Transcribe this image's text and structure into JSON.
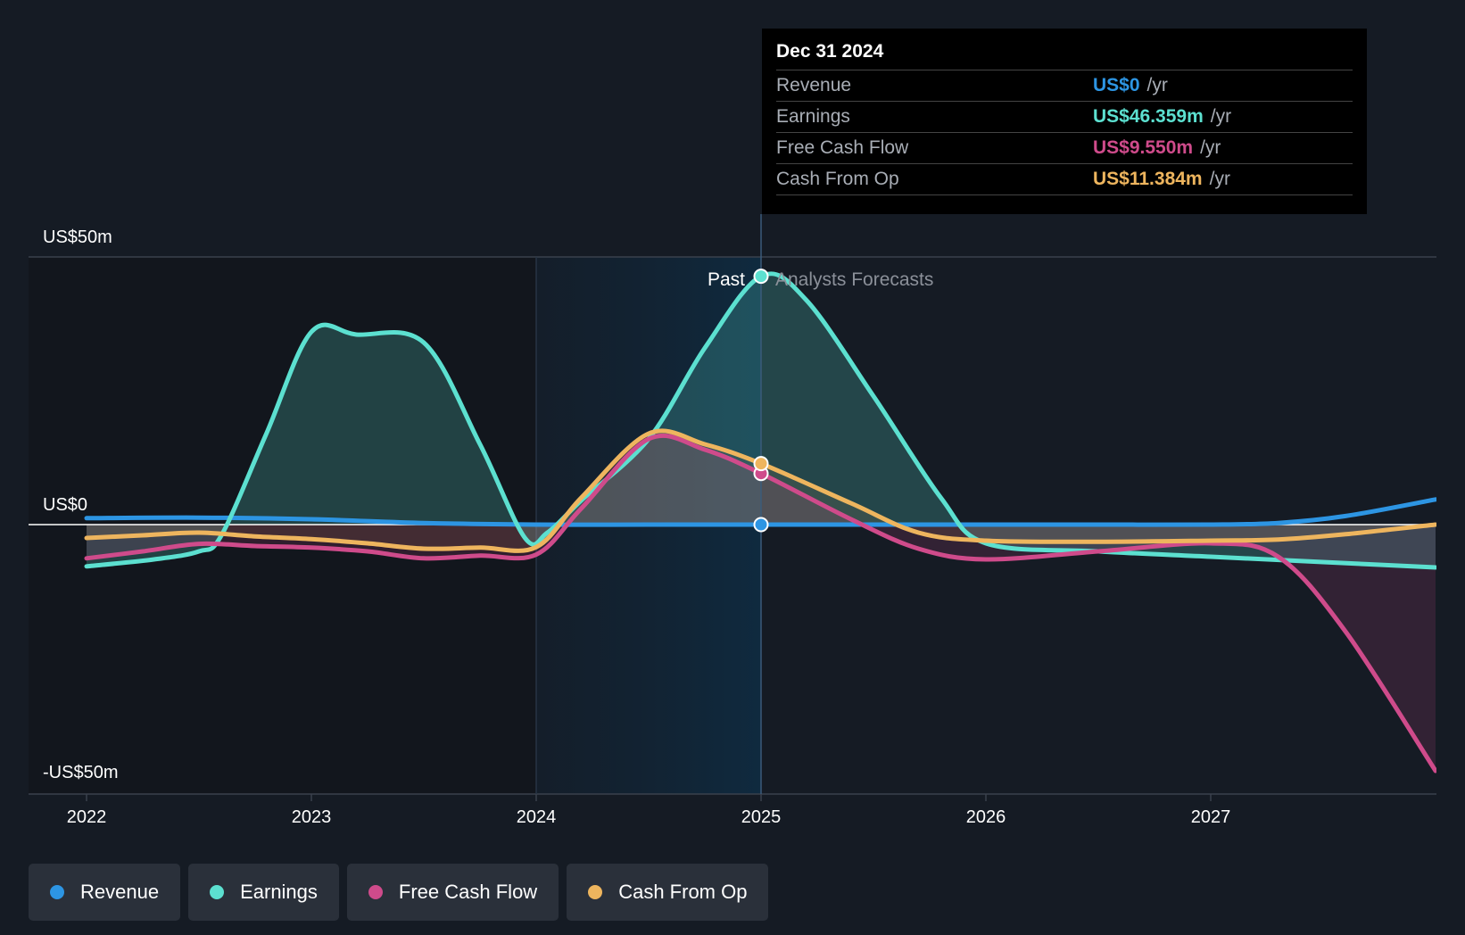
{
  "chart_data": {
    "type": "line",
    "y_axis": {
      "ylim": [
        -50,
        50
      ],
      "tick_labels": [
        "US$50m",
        "US$0",
        "-US$50m"
      ]
    },
    "x_axis": {
      "xlim": [
        2021.75,
        2028.0
      ],
      "ticks": [
        2022,
        2023,
        2024,
        2025,
        2026,
        2027
      ],
      "tick_labels": [
        "2022",
        "2023",
        "2024",
        "2025",
        "2026",
        "2027"
      ]
    },
    "divider_x": 2025.0,
    "highlight_range": [
      2024.0,
      2025.0
    ],
    "past_label": "Past",
    "forecast_label": "Analysts Forecasts",
    "series": [
      {
        "name": "Revenue",
        "color": "#2d95e3",
        "x": [
          2022.0,
          2022.5,
          2023.0,
          2023.5,
          2024.0,
          2024.5,
          2025.0,
          2025.5,
          2026.0,
          2026.5,
          2027.0,
          2027.3,
          2027.6,
          2028.0
        ],
        "y": [
          1.2,
          1.3,
          1.0,
          0.3,
          0.0,
          0.0,
          0.0,
          0.0,
          0.0,
          0.0,
          0.0,
          0.3,
          1.6,
          4.7
        ]
      },
      {
        "name": "Earnings",
        "color": "#5ce0d0",
        "x": [
          2022.0,
          2022.3,
          2022.5,
          2022.6,
          2022.8,
          2023.0,
          2023.2,
          2023.5,
          2023.75,
          2023.95,
          2024.05,
          2024.2,
          2024.5,
          2024.75,
          2025.0,
          2025.2,
          2025.5,
          2025.8,
          2026.0,
          2026.5,
          2027.0,
          2027.5,
          2028.0
        ],
        "y": [
          -7.8,
          -6.5,
          -5.0,
          -2.0,
          17.0,
          36.0,
          35.5,
          34.0,
          15.0,
          -2.5,
          -1.5,
          4.5,
          16.0,
          33.0,
          46.4,
          42.0,
          24.0,
          5.0,
          -3.5,
          -5.0,
          -6.0,
          -7.0,
          -8.0
        ]
      },
      {
        "name": "Free Cash Flow",
        "color": "#cf4b8b",
        "x": [
          2022.0,
          2022.25,
          2022.5,
          2022.75,
          2023.0,
          2023.25,
          2023.5,
          2023.75,
          2024.0,
          2024.2,
          2024.5,
          2024.75,
          2025.0,
          2025.4,
          2025.7,
          2026.0,
          2026.5,
          2027.0,
          2027.3,
          2027.6,
          2028.0
        ],
        "y": [
          -6.3,
          -5.0,
          -3.6,
          -4.0,
          -4.3,
          -5.0,
          -6.3,
          -5.8,
          -5.6,
          3.0,
          16.0,
          14.0,
          9.55,
          1.0,
          -4.5,
          -6.5,
          -5.0,
          -3.5,
          -6.0,
          -20.0,
          -46.0
        ]
      },
      {
        "name": "Cash From Op",
        "color": "#eeb55e",
        "x": [
          2022.0,
          2022.25,
          2022.5,
          2022.75,
          2023.0,
          2023.25,
          2023.5,
          2023.75,
          2024.0,
          2024.2,
          2024.5,
          2024.75,
          2025.0,
          2025.4,
          2025.7,
          2026.0,
          2026.5,
          2027.0,
          2027.3,
          2027.6,
          2028.0
        ],
        "y": [
          -2.5,
          -2.0,
          -1.5,
          -2.2,
          -2.7,
          -3.5,
          -4.5,
          -4.3,
          -4.2,
          5.0,
          17.0,
          15.0,
          11.4,
          4.0,
          -1.5,
          -3.0,
          -3.2,
          -3.0,
          -2.8,
          -1.8,
          0.0
        ]
      }
    ],
    "markers_x": 2025.0
  },
  "tooltip": {
    "date": "Dec 31 2024",
    "rows": [
      {
        "name": "Revenue",
        "value": "US$0",
        "unit": "/yr",
        "color": "#2d95e3"
      },
      {
        "name": "Earnings",
        "value": "US$46.359m",
        "unit": "/yr",
        "color": "#5ce0d0"
      },
      {
        "name": "Free Cash Flow",
        "value": "US$9.550m",
        "unit": "/yr",
        "color": "#cf4b8b"
      },
      {
        "name": "Cash From Op",
        "value": "US$11.384m",
        "unit": "/yr",
        "color": "#eeb55e"
      }
    ]
  },
  "legend": [
    {
      "label": "Revenue",
      "color": "#2d95e3"
    },
    {
      "label": "Earnings",
      "color": "#5ce0d0"
    },
    {
      "label": "Free Cash Flow",
      "color": "#cf4b8b"
    },
    {
      "label": "Cash From Op",
      "color": "#eeb55e"
    }
  ]
}
